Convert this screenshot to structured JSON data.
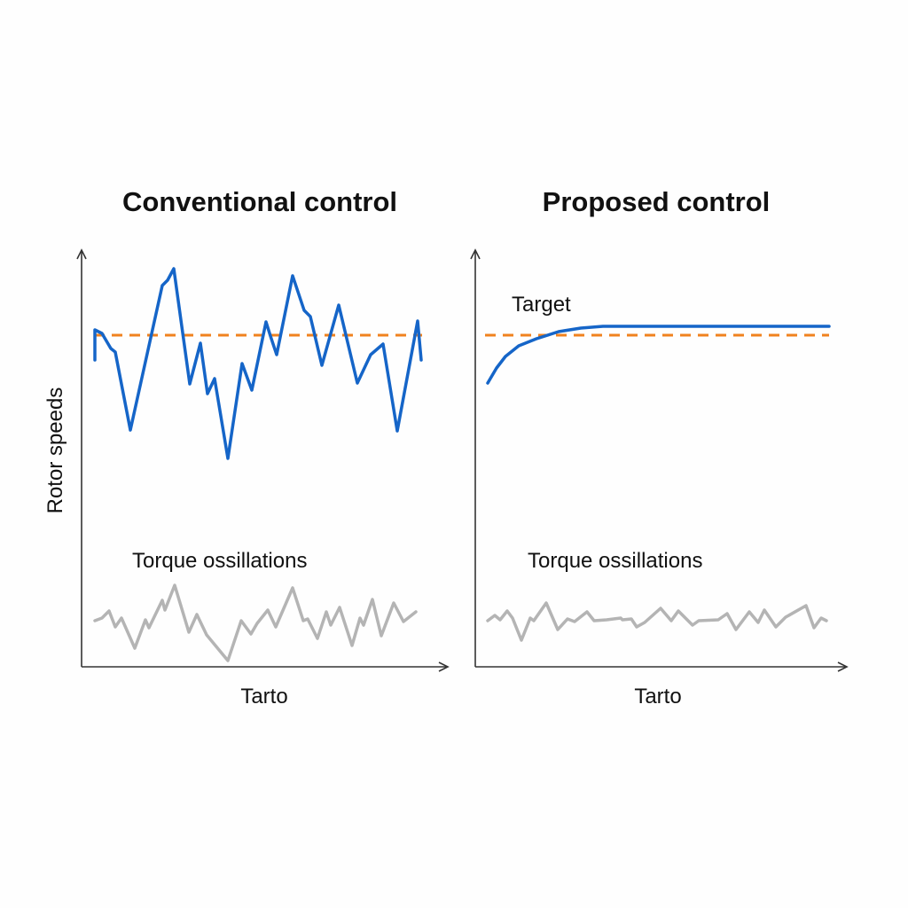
{
  "chart_data": [
    {
      "type": "line",
      "title": "Conventional control",
      "xlabel": "Tarto",
      "ylabel": "Rotor speeds",
      "xlim": [
        0,
        103
      ],
      "ylim": [
        0,
        117
      ],
      "grid": false,
      "annotations": [
        "Torque ossillations"
      ],
      "series": [
        {
          "name": "Rotor speed",
          "color": "#1565c8",
          "x": [
            3.75,
            3.75,
            5.75,
            8.25,
            9.5,
            13.75,
            22.75,
            24.25,
            26,
            30.5,
            33.5,
            35.5,
            37.5,
            41.25,
            45.25,
            48,
            52,
            53.25,
            55,
            59.5,
            62.75,
            64.5,
            67.75,
            72.5,
            77.75,
            81.5,
            85,
            89,
            94.75,
            95.75
          ],
          "y": [
            86.5,
            95,
            94,
            89.75,
            88.75,
            66.75,
            107.5,
            109,
            112.25,
            79.75,
            91.25,
            77,
            81.25,
            58.75,
            85.5,
            78,
            97.25,
            93.25,
            88,
            110.25,
            100.5,
            98.75,
            85,
            102,
            80,
            88,
            91,
            66.5,
            97.5,
            86.5
          ]
        },
        {
          "name": "Target",
          "color": "#f0821e",
          "dashed": true,
          "x": [
            3.5,
            96
          ],
          "y": [
            93.5,
            93.5
          ]
        },
        {
          "name": "Torque",
          "color": "#b4b4b4",
          "x": [
            3.75,
            5.75,
            7.75,
            9.5,
            11.25,
            15,
            18,
            19,
            22.75,
            23.5,
            26.25,
            30.25,
            32.5,
            35.25,
            41.25,
            45,
            47.75,
            49.5,
            52.5,
            54.75,
            59.5,
            62.5,
            63.75,
            66.5,
            69,
            70.25,
            72.75,
            76.25,
            78.5,
            79.5,
            82,
            84.5,
            88,
            90.75,
            94.25
          ],
          "y": [
            13,
            13.75,
            15.75,
            11.25,
            13.75,
            5.25,
            13.25,
            11,
            18.75,
            16,
            23,
            9.75,
            14.75,
            9,
            1.75,
            13,
            9.25,
            12.25,
            16,
            11.25,
            22.25,
            13,
            13.5,
            8,
            15.5,
            11.75,
            16.75,
            6,
            13.75,
            11.75,
            19,
            8.75,
            18,
            12.75,
            15.5
          ]
        }
      ]
    },
    {
      "type": "line",
      "title": "Proposed control",
      "xlabel": "Tarto",
      "xlim": [
        0,
        105
      ],
      "ylim": [
        0,
        117
      ],
      "grid": false,
      "annotations": [
        "Target",
        "Torque ossillations"
      ],
      "series": [
        {
          "name": "Rotor speed",
          "color": "#1565c8",
          "x": [
            3.5,
            6,
            8.5,
            12.25,
            17.25,
            23.5,
            29.75,
            36,
            99.75
          ],
          "y": [
            80,
            84.25,
            87.5,
            90.5,
            92.5,
            94.5,
            95.5,
            96,
            96
          ]
        },
        {
          "name": "Target",
          "color": "#f0821e",
          "dashed": true,
          "x": [
            2.75,
            99.75
          ],
          "y": [
            93.5,
            93.5
          ]
        },
        {
          "name": "Torque",
          "color": "#b4b4b4",
          "x": [
            3.5,
            5.5,
            7,
            9,
            10.5,
            13,
            15.5,
            16.5,
            20,
            23.25,
            26,
            28,
            31.5,
            33.5,
            37,
            41,
            41.5,
            44,
            45.5,
            47.75,
            52.25,
            55.25,
            57.25,
            61.25,
            63,
            68.5,
            71,
            73.5,
            77.25,
            79.75,
            81.5,
            84.75,
            87.5,
            93.25,
            95.5,
            97.5,
            99
          ],
          "y": [
            13,
            14.5,
            13.25,
            15.75,
            13.75,
            7.5,
            13.75,
            13,
            18,
            10.5,
            13.5,
            12.75,
            15.5,
            13,
            13.25,
            13.75,
            13.25,
            13.5,
            11.25,
            12.5,
            16.5,
            13,
            15.75,
            11.75,
            13,
            13.25,
            15,
            10.5,
            15.5,
            12.5,
            16,
            11.25,
            14,
            17.25,
            11,
            13.75,
            13
          ]
        }
      ]
    }
  ]
}
